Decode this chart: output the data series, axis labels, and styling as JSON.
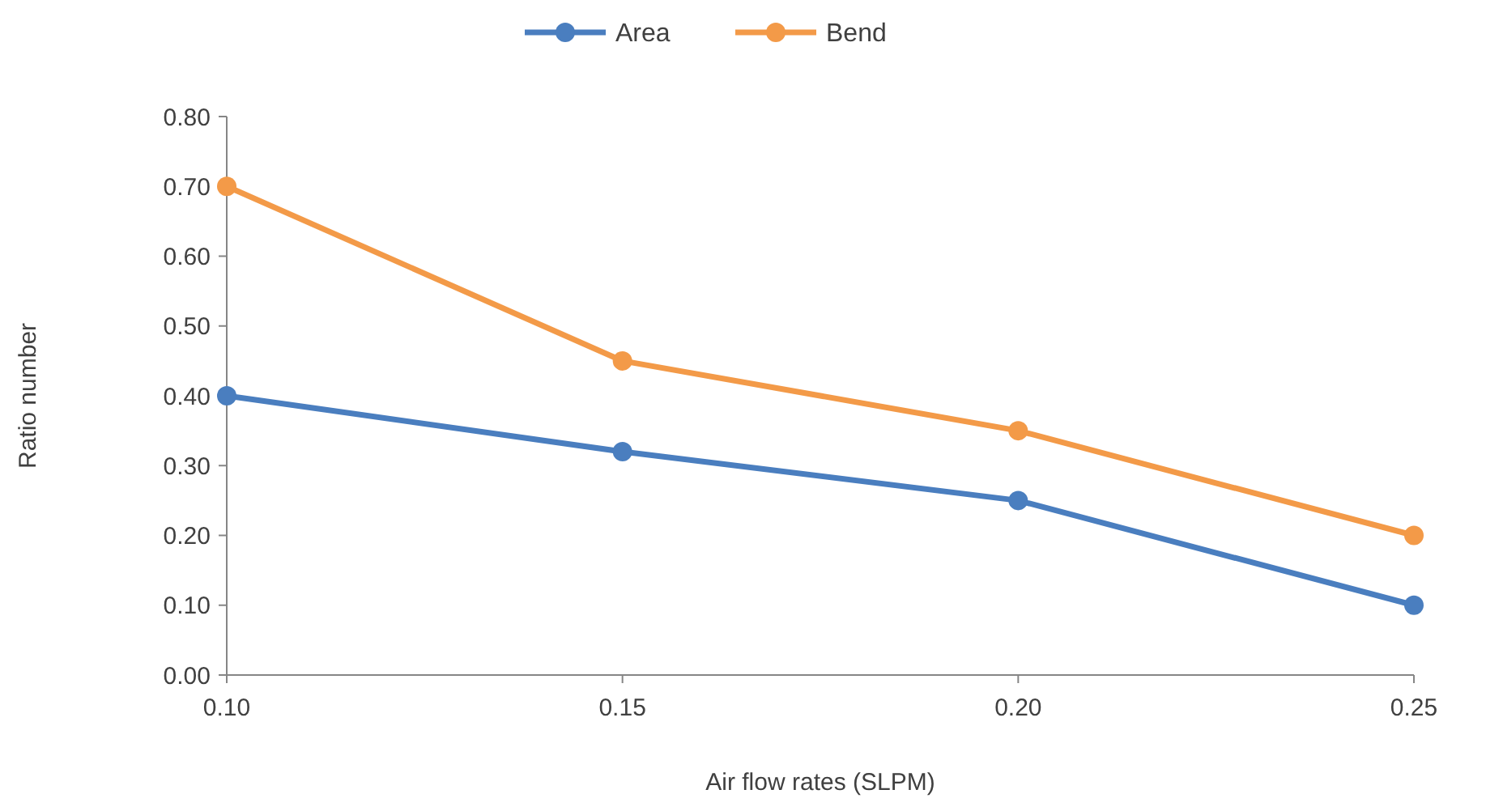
{
  "chart_data": {
    "type": "line",
    "xlabel": "Air flow rates (SLPM)",
    "ylabel": "Ratio number",
    "x": [
      0.1,
      0.15,
      0.2,
      0.25
    ],
    "series": [
      {
        "name": "Area",
        "color": "#4a7ebf",
        "values": [
          0.4,
          0.32,
          0.25,
          0.1
        ]
      },
      {
        "name": "Bend",
        "color": "#f39a48",
        "values": [
          0.7,
          0.45,
          0.35,
          0.2
        ]
      }
    ],
    "xlim": [
      0.1,
      0.25
    ],
    "xticks": [
      {
        "value": 0.1,
        "label": "0.10"
      },
      {
        "value": 0.15,
        "label": "0.15"
      },
      {
        "value": 0.2,
        "label": "0.20"
      },
      {
        "value": 0.25,
        "label": "0.25"
      }
    ],
    "ylim": [
      0,
      0.8
    ],
    "yticks": [
      {
        "value": 0,
        "label": "0.00"
      },
      {
        "value": 0.1,
        "label": "0.10"
      },
      {
        "value": 0.2,
        "label": "0.20"
      },
      {
        "value": 0.3,
        "label": "0.30"
      },
      {
        "value": 0.4,
        "label": "0.40"
      },
      {
        "value": 0.5,
        "label": "0.50"
      },
      {
        "value": 0.6,
        "label": "0.60"
      },
      {
        "value": 0.7,
        "label": "0.70"
      },
      {
        "value": 0.8,
        "label": "0.80"
      }
    ],
    "grid": false,
    "legend": "top",
    "marker": "circle",
    "line_style": "solid"
  }
}
